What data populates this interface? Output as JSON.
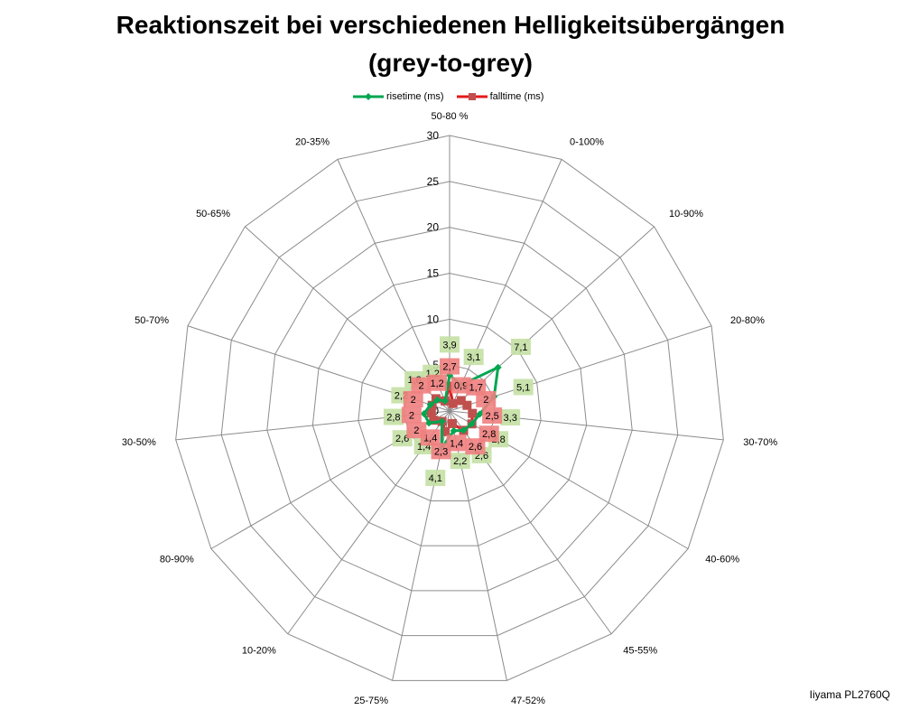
{
  "title_line1": "Reaktionszeit bei verschiedenen Helligkeitsübergängen",
  "title_line2": "(grey-to-grey)",
  "credit": "Iiyama PL2760Q",
  "colors": {
    "rise": "#00a650",
    "fall": "#c0504d",
    "rise_label_bg": "#c4e0a4",
    "fall_label_bg": "#f08080",
    "grid": "#8c8c8c"
  },
  "chart_data": {
    "type": "radar",
    "title": "Reaktionszeit bei verschiedenen Helligkeitsübergängen (grey-to-grey)",
    "categories": [
      "50-80 %",
      "0-100%",
      "10-90%",
      "20-80%",
      "30-70%",
      "40-60%",
      "45-55%",
      "47-52%",
      "25-75%",
      "10-20%",
      "80-90%",
      "30-50%",
      "50-70%",
      "50-65%",
      "20-35%"
    ],
    "radial_ticks": [
      "0",
      "5",
      "10",
      "15",
      "20",
      "25",
      "30"
    ],
    "rlim": [
      0,
      30
    ],
    "legend_position": "top",
    "series": [
      {
        "name": "risetime (ms)",
        "values": [
          3.9,
          3.1,
          7.1,
          5.1,
          3.3,
          2.8,
          2.6,
          2.2,
          4.1,
          1.4,
          2.6,
          2.8,
          2.2,
          1.8,
          1.2
        ],
        "labels": [
          "3,9",
          "3,1",
          "7,1",
          "5,1",
          "3,3",
          "2,8",
          "2,6",
          "2,2",
          "4,1",
          "1,4",
          "2,6",
          "2,8",
          "2,2",
          "1,8",
          "1,2"
        ]
      },
      {
        "name": "falltime (ms)",
        "values": [
          2.7,
          0.9,
          1.7,
          2.0,
          2.5,
          2.8,
          2.6,
          1.4,
          2.3,
          1.4,
          2.0,
          2.0,
          2.0,
          2.0,
          1.2
        ],
        "labels": [
          "2,7",
          "0,9",
          "1,7",
          "2",
          "2,5",
          "2,8",
          "2,6",
          "1,4",
          "2,3",
          "1,4",
          "2",
          "2",
          "2",
          "2",
          "1,2"
        ]
      }
    ]
  }
}
